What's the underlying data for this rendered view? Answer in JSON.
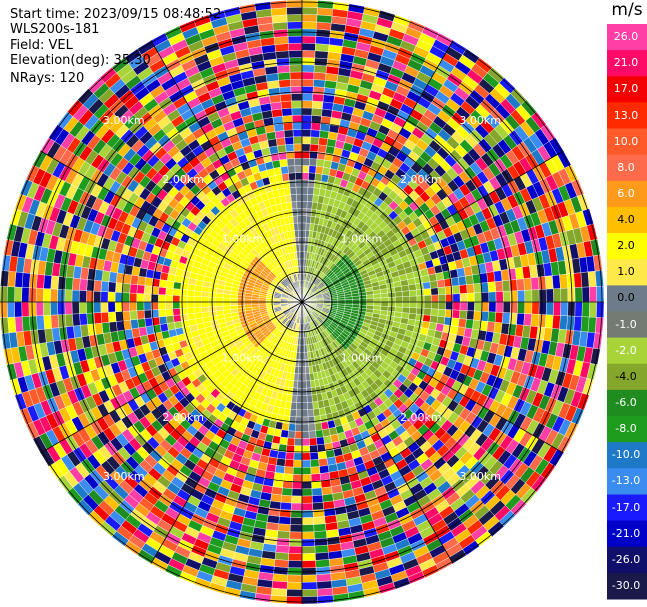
{
  "header": {
    "start_time": "Start time: 2023/09/15 08:48:52",
    "instrument": "WLS200s-181",
    "field": "Field: VEL",
    "elevation": "Elevation(deg): 35.30",
    "nrays": "NRays: 120"
  },
  "colorbar": {
    "unit": "m/s",
    "ticks": [
      "26.0",
      "21.0",
      "17.0",
      "13.0",
      "10.0",
      "8.0",
      "6.0",
      "4.0",
      "2.0",
      "1.0",
      "0.0",
      "-1.0",
      "-2.0",
      "-4.0",
      "-6.0",
      "-8.0",
      "-10.0",
      "-13.0",
      "-17.0",
      "-21.0",
      "-26.0",
      "-30.0"
    ],
    "colors": [
      "#ff3fa5",
      "#ff0a66",
      "#f50000",
      "#ff2a00",
      "#ff5a2a",
      "#ff6a4a",
      "#ff9a1a",
      "#ffbf00",
      "#ffff00",
      "#ffe84a",
      "#6e7b8b",
      "#737b72",
      "#a8d43a",
      "#84a62a",
      "#1e8c1e",
      "#1e9c1e",
      "#1e7ac8",
      "#3a8cf0",
      "#1a1aff",
      "#0000c8",
      "#10106a",
      "#1a1a4a"
    ]
  },
  "chart_data": {
    "type": "heatmap",
    "projection": "polar PPI",
    "field": "VEL",
    "units": "m/s",
    "nrays": 120,
    "elevation_deg": 35.3,
    "range_rings_km": [
      1.0,
      2.0,
      3.0
    ],
    "ring_labels": [
      "1.00km",
      "2.00km",
      "3.00km"
    ],
    "spoke_angles_deg": [
      0,
      30,
      60,
      90,
      120,
      150,
      180,
      210,
      240,
      270,
      300,
      330
    ],
    "color_scale_min": -30.0,
    "color_scale_max": 26.0,
    "pattern": {
      "west_region_range_km": [
        0.6,
        2.0
      ],
      "west_velocity_ms": 2.0,
      "east_region_range_km": [
        0.6,
        2.0
      ],
      "east_velocity_ms": -2.0,
      "center_velocity_ms": 0.0,
      "noise_beyond_km": 2.0
    }
  }
}
